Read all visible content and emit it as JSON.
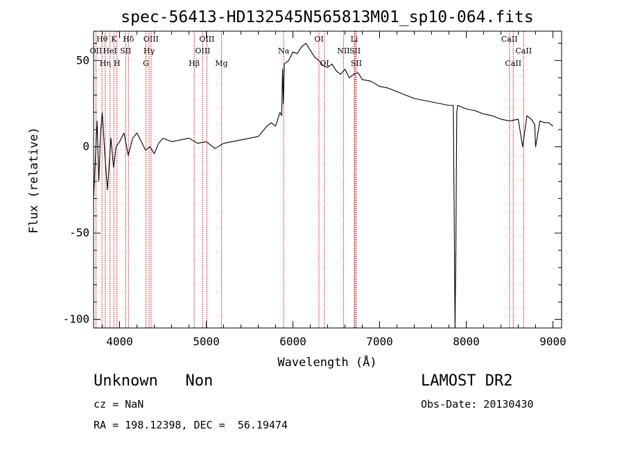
{
  "chart_data": {
    "type": "line",
    "title": "spec-56413-HD132545N565813M01_sp10-064.fits",
    "xlabel": "Wavelength (Å)",
    "ylabel": "Flux (relative)",
    "xlim": [
      3700,
      9100
    ],
    "ylim": [
      -105,
      67
    ],
    "x_ticks": [
      4000,
      5000,
      6000,
      7000,
      8000,
      9000
    ],
    "y_ticks": [
      -100,
      -50,
      0,
      50
    ],
    "grid": false,
    "series": [
      {
        "x": [
          3700,
          3740,
          3760,
          3780,
          3800,
          3830,
          3860,
          3900,
          3930,
          3960,
          4000,
          4050,
          4100,
          4150,
          4200,
          4250,
          4300,
          4350,
          4400,
          4450,
          4500,
          4600,
          4700,
          4800,
          4900,
          5000,
          5100,
          5200,
          5300,
          5400,
          5500,
          5600,
          5700,
          5750,
          5800,
          5850,
          5870,
          5880,
          5890,
          5900,
          5950,
          6000,
          6050,
          6100,
          6150,
          6200,
          6250,
          6300,
          6350,
          6400,
          6450,
          6500,
          6550,
          6600,
          6650,
          6700,
          6750,
          6800,
          6900,
          7000,
          7100,
          7200,
          7300,
          7400,
          7500,
          7600,
          7700,
          7800,
          7850,
          7860,
          7870,
          7880,
          7890,
          7900,
          8000,
          8100,
          8200,
          8300,
          8400,
          8500,
          8600,
          8650,
          8700,
          8750,
          8790,
          8800,
          8850,
          8900,
          8950,
          9000
        ],
        "y": [
          -30,
          15,
          -20,
          8,
          20,
          -5,
          -25,
          5,
          -12,
          0,
          3,
          8,
          -5,
          5,
          8,
          3,
          -2,
          0,
          -4,
          2,
          5,
          3,
          4,
          5,
          2,
          3,
          -1,
          2,
          3,
          4,
          5,
          6,
          12,
          14,
          12,
          20,
          18,
          45,
          25,
          48,
          50,
          55,
          54,
          58,
          60,
          56,
          52,
          50,
          47,
          46,
          48,
          44,
          42,
          45,
          40,
          42,
          43,
          39,
          38,
          35,
          34,
          32,
          30,
          28,
          27,
          26,
          25,
          24,
          24,
          -35,
          -105,
          -60,
          20,
          24,
          22,
          21,
          19,
          18,
          16,
          15,
          16,
          0,
          18,
          16,
          13,
          0,
          15,
          14,
          14,
          12
        ]
      }
    ],
    "line_marks": [
      {
        "w": 3797,
        "label": "Hθ",
        "row": 0
      },
      {
        "w": 3727,
        "label": "OII",
        "row": 1
      },
      {
        "w": 3835,
        "label": "Hη",
        "row": 2
      },
      {
        "w": 3889,
        "label": "HeI",
        "row": 1
      },
      {
        "w": 3934,
        "label": "K",
        "row": 0
      },
      {
        "w": 3970,
        "label": "H",
        "row": 2
      },
      {
        "w": 4070,
        "label": "SII",
        "row": 1
      },
      {
        "w": 4102,
        "label": "Hδ",
        "row": 0
      },
      {
        "w": 4340,
        "label": "Hγ",
        "row": 1
      },
      {
        "w": 4363,
        "label": "OIII",
        "row": 0
      },
      {
        "w": 4304,
        "label": "G",
        "row": 2
      },
      {
        "w": 4861,
        "label": "Hβ",
        "row": 2
      },
      {
        "w": 4959,
        "label": "OIII",
        "row": 1
      },
      {
        "w": 5007,
        "label": "OIII",
        "row": 0
      },
      {
        "w": 5175,
        "label": "Mg",
        "row": 2
      },
      {
        "w": 5893,
        "label": "Na",
        "row": 1
      },
      {
        "w": 6300,
        "label": "OI",
        "row": 0
      },
      {
        "w": 6364,
        "label": "OI",
        "row": 2
      },
      {
        "w": 6583,
        "label": "NII",
        "row": 1
      },
      {
        "w": 6708,
        "label": "Li",
        "row": 0
      },
      {
        "w": 6717,
        "label": "SII",
        "row": 1
      },
      {
        "w": 6731,
        "label": "SII",
        "row": 2
      },
      {
        "w": 8498,
        "label": "CaII",
        "row": 0
      },
      {
        "w": 8542,
        "label": "CaII",
        "row": 2
      },
      {
        "w": 8662,
        "label": "CaII",
        "row": 1
      }
    ],
    "line_color": "#000000",
    "marker_color": "#cc0000"
  },
  "info": {
    "class_label": "Unknown   Non",
    "cz": "cz = NaN",
    "coords": "RA = 198.12398, DEC =  56.19474",
    "survey": "LAMOST DR2",
    "obs_date": "Obs-Date: 20130430"
  }
}
